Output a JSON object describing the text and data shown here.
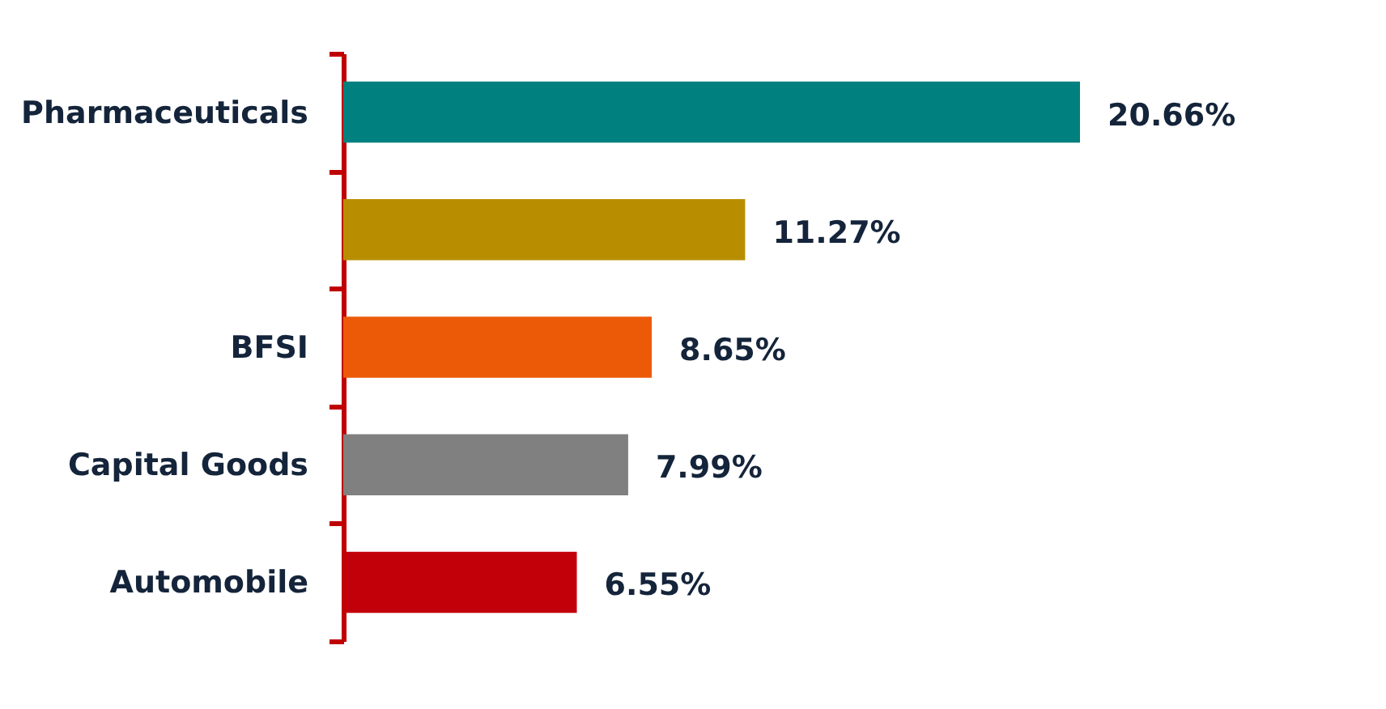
{
  "chart_data": {
    "type": "bar",
    "orientation": "horizontal",
    "categories": [
      "Pharmaceuticals",
      null,
      "BFSI",
      "Capital Goods",
      "Automobile"
    ],
    "values": [
      20.66,
      11.27,
      8.65,
      7.99,
      6.55
    ],
    "colors": [
      "#00807e",
      "#b88e00",
      "#ec5a08",
      "#808080",
      "#c2000a"
    ],
    "value_labels": [
      "20.66%",
      "11.27%",
      "8.65%",
      "7.99%",
      "6.55%"
    ],
    "tick_labels": "y"
  }
}
